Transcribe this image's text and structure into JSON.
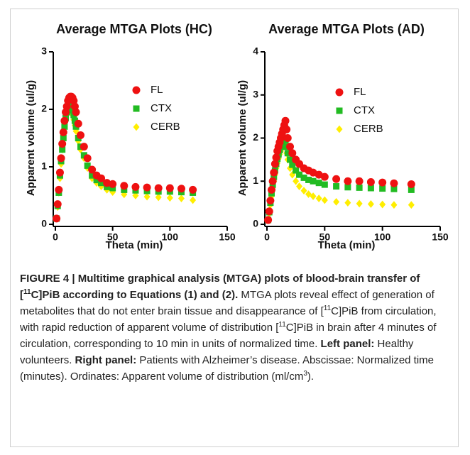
{
  "chart_data": [
    {
      "type": "scatter",
      "title": "Average MTGA Plots (HC)",
      "x_label": "Theta (min)",
      "y_label": "Apparent volume (ul/g)",
      "xlim": [
        0,
        150
      ],
      "xticks": [
        0,
        50,
        100,
        150
      ],
      "ylim": [
        0,
        3
      ],
      "yticks": [
        0,
        1,
        2,
        3
      ],
      "x": [
        1,
        2,
        3,
        4,
        5,
        6,
        7,
        8,
        9,
        10,
        11,
        12,
        13,
        14,
        15,
        16,
        17,
        18,
        20,
        22,
        25,
        28,
        32,
        36,
        40,
        45,
        50,
        60,
        70,
        80,
        90,
        100,
        110,
        120
      ],
      "series": [
        {
          "name": "FL",
          "color": "#ee1111",
          "marker": "circle",
          "values": [
            0.1,
            0.35,
            0.6,
            0.9,
            1.15,
            1.4,
            1.6,
            1.8,
            1.95,
            2.05,
            2.15,
            2.2,
            2.22,
            2.22,
            2.2,
            2.15,
            2.05,
            1.95,
            1.75,
            1.55,
            1.35,
            1.15,
            0.95,
            0.85,
            0.8,
            0.72,
            0.7,
            0.67,
            0.65,
            0.64,
            0.63,
            0.63,
            0.62,
            0.6
          ]
        },
        {
          "name": "CTX",
          "color": "#22bb22",
          "marker": "square",
          "values": [
            0.1,
            0.32,
            0.55,
            0.85,
            1.1,
            1.3,
            1.5,
            1.7,
            1.85,
            1.95,
            2.02,
            2.05,
            2.05,
            2.03,
            1.98,
            1.9,
            1.8,
            1.7,
            1.5,
            1.35,
            1.2,
            1.02,
            0.85,
            0.77,
            0.72,
            0.65,
            0.63,
            0.6,
            0.59,
            0.58,
            0.57,
            0.57,
            0.56,
            0.55
          ]
        },
        {
          "name": "CERB",
          "color": "#ffee00",
          "marker": "diamond",
          "values": [
            0.1,
            0.3,
            0.55,
            0.8,
            1.05,
            1.3,
            1.5,
            1.7,
            1.85,
            1.95,
            2.0,
            2.02,
            2.0,
            1.97,
            1.9,
            1.82,
            1.72,
            1.62,
            1.45,
            1.3,
            1.15,
            0.98,
            0.8,
            0.72,
            0.66,
            0.6,
            0.56,
            0.52,
            0.5,
            0.48,
            0.47,
            0.46,
            0.45,
            0.42
          ]
        }
      ]
    },
    {
      "type": "scatter",
      "title": "Average MTGA Plots (AD)",
      "x_label": "Theta (min)",
      "y_label": "Apparent volume (ul/g)",
      "xlim": [
        0,
        150
      ],
      "xticks": [
        0,
        50,
        100,
        150
      ],
      "ylim": [
        0,
        4
      ],
      "yticks": [
        0,
        1,
        2,
        3,
        4
      ],
      "x": [
        1,
        2,
        3,
        4,
        5,
        6,
        7,
        8,
        9,
        10,
        11,
        12,
        13,
        14,
        15,
        16,
        17,
        18,
        20,
        22,
        25,
        28,
        32,
        36,
        40,
        45,
        50,
        60,
        70,
        80,
        90,
        100,
        110,
        125
      ],
      "series": [
        {
          "name": "FL",
          "color": "#ee1111",
          "marker": "circle",
          "values": [
            0.1,
            0.3,
            0.55,
            0.8,
            1.0,
            1.2,
            1.4,
            1.55,
            1.7,
            1.8,
            1.9,
            2.0,
            2.1,
            2.2,
            2.3,
            2.4,
            2.2,
            2.0,
            1.8,
            1.65,
            1.5,
            1.4,
            1.3,
            1.25,
            1.2,
            1.15,
            1.1,
            1.05,
            1.0,
            1.0,
            0.98,
            0.97,
            0.95,
            0.93
          ]
        },
        {
          "name": "CTX",
          "color": "#22bb22",
          "marker": "square",
          "values": [
            0.1,
            0.28,
            0.5,
            0.72,
            0.92,
            1.1,
            1.25,
            1.4,
            1.52,
            1.62,
            1.72,
            1.8,
            1.88,
            1.95,
            2.0,
            1.95,
            1.8,
            1.65,
            1.5,
            1.38,
            1.25,
            1.15,
            1.08,
            1.03,
            1.0,
            0.96,
            0.92,
            0.88,
            0.86,
            0.85,
            0.84,
            0.83,
            0.82,
            0.8
          ]
        },
        {
          "name": "CERB",
          "color": "#ffee00",
          "marker": "diamond",
          "values": [
            0.1,
            0.25,
            0.45,
            0.65,
            0.85,
            1.0,
            1.15,
            1.3,
            1.42,
            1.52,
            1.62,
            1.7,
            1.78,
            1.85,
            1.9,
            1.82,
            1.65,
            1.5,
            1.3,
            1.15,
            1.0,
            0.88,
            0.78,
            0.7,
            0.65,
            0.6,
            0.56,
            0.52,
            0.5,
            0.48,
            0.47,
            0.46,
            0.45,
            0.45
          ]
        }
      ]
    }
  ],
  "caption": [
    {
      "text": "FIGURE 4 | Multitime graphical analysis (MTGA) plots of blood-brain transfer of [",
      "bold": true
    },
    {
      "text": "11",
      "bold": true,
      "sup": true
    },
    {
      "text": "C]PiB according to Equations (1) and (2).",
      "bold": true
    },
    {
      "text": " MTGA plots reveal effect of generation of metabolites that do not enter brain tissue and disappearance of ["
    },
    {
      "text": "11",
      "sup": true
    },
    {
      "text": "C]PiB from circulation, with rapid reduction of apparent volume of distribution ["
    },
    {
      "text": "11",
      "sup": true
    },
    {
      "text": "C]PiB in brain after 4 minutes of circulation, corresponding to 10 min in units of normalized time. "
    },
    {
      "text": "Left panel:",
      "bold": true
    },
    {
      "text": " Healthy volunteers. "
    },
    {
      "text": "Right panel:",
      "bold": true
    },
    {
      "text": " Patients with Alzheimer’s disease. Abscissae: Normalized time (minutes). Ordinates: Apparent volume of distribution (ml/cm"
    },
    {
      "text": "3",
      "sup": true
    },
    {
      "text": ")."
    }
  ]
}
